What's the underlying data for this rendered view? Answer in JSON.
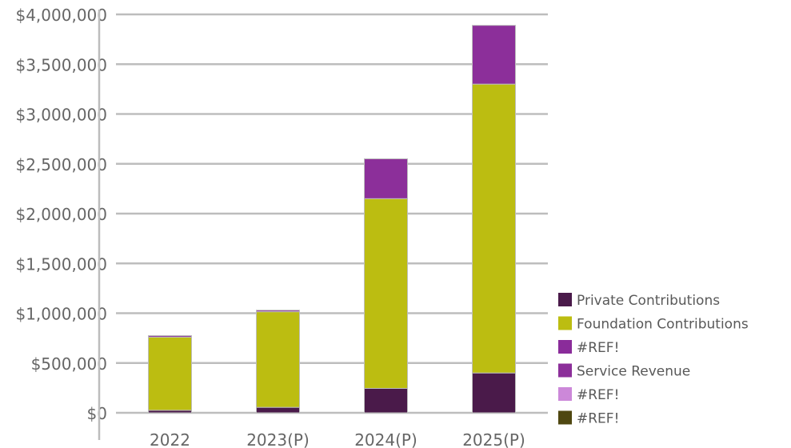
{
  "chart_data": {
    "type": "bar",
    "stacked": true,
    "title": "",
    "xlabel": "",
    "ylabel": "",
    "categories": [
      "2022",
      "2023(P)",
      "2024(P)",
      "2025(P)"
    ],
    "ylim": [
      0,
      4000000
    ],
    "yticks": [
      0,
      500000,
      1000000,
      1500000,
      2000000,
      2500000,
      3000000,
      3500000,
      4000000
    ],
    "ytick_labels": [
      "$0",
      "$500,000",
      "$1,000,000",
      "$1,500,000",
      "$2,000,000",
      "$2,500,000",
      "$3,000,000",
      "$3,500,000",
      "$4,000,000"
    ],
    "grid": true,
    "legend_position": "right-bottom",
    "series": [
      {
        "name": "Private Contributions",
        "color": "#4a1a4a",
        "values": [
          25000,
          55000,
          245000,
          400000
        ]
      },
      {
        "name": "Foundation Contributions",
        "color": "#bcbd11",
        "values": [
          735000,
          960000,
          1905000,
          2900000
        ]
      },
      {
        "name": "#REF!",
        "color": "#8a2c9a",
        "values": [
          0,
          0,
          0,
          0
        ]
      },
      {
        "name": "Service Revenue",
        "color": "#8c2f9a",
        "values": [
          15000,
          15000,
          400000,
          590000
        ]
      },
      {
        "name": "#REF!",
        "color": "#cc88d9",
        "values": [
          0,
          0,
          0,
          0
        ]
      },
      {
        "name": "#REF!",
        "color": "#4f4710",
        "values": [
          0,
          0,
          0,
          0
        ]
      }
    ]
  }
}
